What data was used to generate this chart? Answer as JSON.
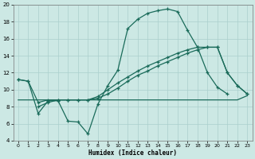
{
  "xlabel": "Humidex (Indice chaleur)",
  "background_color": "#cce8e4",
  "grid_color": "#aacfcc",
  "line_color": "#1a6b5a",
  "xlim": [
    -0.5,
    23.5
  ],
  "ylim": [
    4,
    20
  ],
  "yticks": [
    4,
    6,
    8,
    10,
    12,
    14,
    16,
    18,
    20
  ],
  "xticks": [
    0,
    1,
    2,
    3,
    4,
    5,
    6,
    7,
    8,
    9,
    10,
    11,
    12,
    13,
    14,
    15,
    16,
    17,
    18,
    19,
    20,
    21,
    22,
    23
  ],
  "s1_x": [
    0,
    1,
    2,
    3,
    4,
    5,
    6,
    7,
    8,
    9,
    10,
    11,
    12,
    13,
    14,
    15,
    16,
    17,
    18,
    19,
    20,
    21
  ],
  "s1_y": [
    11.2,
    11.0,
    7.2,
    8.7,
    8.7,
    6.3,
    6.2,
    4.8,
    8.3,
    10.5,
    12.3,
    17.2,
    18.3,
    19.0,
    19.3,
    19.5,
    19.2,
    17.0,
    15.0,
    12.0,
    10.3,
    9.5
  ],
  "s2_x": [
    0,
    1,
    2,
    3,
    4,
    5,
    6,
    7,
    8,
    9,
    10,
    11,
    12,
    13,
    14,
    15,
    16,
    17,
    18,
    19,
    20,
    21,
    22,
    23
  ],
  "s2_y": [
    11.2,
    11.0,
    8.5,
    8.8,
    8.8,
    8.8,
    8.8,
    8.8,
    9.0,
    9.5,
    10.2,
    11.0,
    11.7,
    12.2,
    12.8,
    13.3,
    13.8,
    14.3,
    14.7,
    15.0,
    15.0,
    12.0,
    10.5,
    9.5
  ],
  "s3_x": [
    0,
    1,
    2,
    3,
    4,
    5,
    6,
    7,
    8,
    9,
    10,
    11,
    12,
    13,
    14,
    15,
    16,
    17,
    18,
    19,
    20,
    21,
    22,
    23
  ],
  "s3_y": [
    8.8,
    8.8,
    8.8,
    8.8,
    8.8,
    8.8,
    8.8,
    8.8,
    8.8,
    8.8,
    8.8,
    8.8,
    8.8,
    8.8,
    8.8,
    8.8,
    8.8,
    8.8,
    8.8,
    8.8,
    8.8,
    8.8,
    8.8,
    9.3
  ],
  "s4_x": [
    2,
    3,
    4,
    5,
    6,
    7,
    8,
    9,
    10,
    11,
    12,
    13,
    14,
    15,
    16,
    17,
    18,
    19,
    20,
    21,
    22,
    23
  ],
  "s4_y": [
    8.0,
    8.5,
    8.8,
    8.8,
    8.8,
    8.8,
    9.2,
    10.0,
    10.8,
    11.5,
    12.2,
    12.8,
    13.3,
    13.8,
    14.3,
    14.7,
    15.0,
    15.0,
    15.0,
    12.0,
    10.5,
    9.5
  ]
}
